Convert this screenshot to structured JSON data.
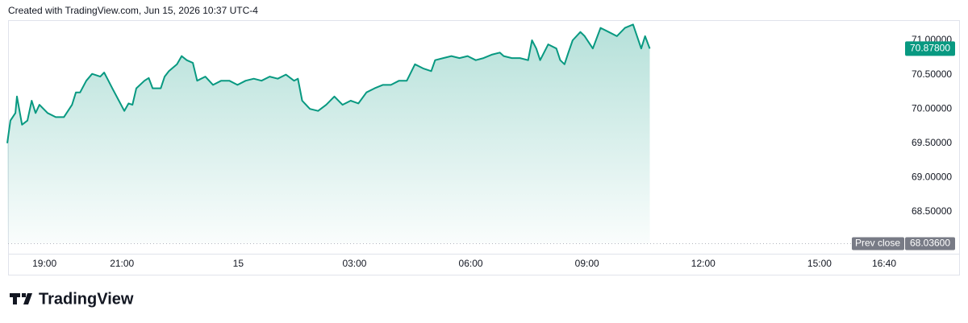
{
  "chart_data": {
    "type": "area",
    "header": "Created with TradingView.com, Jun 15, 2026 10:37 UTC-4",
    "brand": "TradingView",
    "color": "#089981",
    "x": [
      -5.96,
      -5.88,
      -5.75,
      -5.71,
      -5.58,
      -5.44,
      -5.33,
      -5.23,
      -5.13,
      -4.92,
      -4.71,
      -4.5,
      -4.29,
      -4.19,
      -4.08,
      -3.92,
      -3.77,
      -3.56,
      -3.46,
      -3.35,
      -3.25,
      -3.08,
      -2.94,
      -2.83,
      -2.73,
      -2.63,
      -2.42,
      -2.31,
      -2.21,
      -2,
      -1.9,
      -1.79,
      -1.58,
      -1.46,
      -1.33,
      -1.17,
      -1.06,
      -0.85,
      -0.65,
      -0.44,
      -0.23,
      -0.02,
      0.19,
      0.4,
      0.6,
      0.81,
      1.02,
      1.23,
      1.44,
      1.54,
      1.65,
      1.85,
      2.06,
      2.27,
      2.48,
      2.69,
      2.9,
      3.1,
      3.31,
      3.52,
      3.73,
      3.94,
      4.15,
      4.35,
      4.56,
      4.77,
      4.98,
      5.08,
      5.29,
      5.5,
      5.71,
      5.92,
      6.13,
      6.33,
      6.54,
      6.75,
      6.85,
      7.06,
      7.27,
      7.48,
      7.58,
      7.69,
      7.79,
      8,
      8.21,
      8.31,
      8.42,
      8.52,
      8.63,
      8.83,
      8.94,
      9.15,
      9.35,
      9.56,
      9.77,
      9.98,
      10.19,
      10.4,
      10.5,
      10.62
    ],
    "values": [
      69.5,
      69.83,
      69.94,
      70.18,
      69.77,
      69.83,
      70.12,
      69.94,
      70.06,
      69.94,
      69.88,
      69.88,
      70.06,
      70.24,
      70.24,
      70.41,
      70.51,
      70.47,
      70.53,
      70.41,
      70.3,
      70.12,
      69.97,
      70.08,
      70.06,
      70.3,
      70.41,
      70.45,
      70.3,
      70.3,
      70.47,
      70.55,
      70.65,
      70.77,
      70.71,
      70.67,
      70.41,
      70.47,
      70.35,
      70.41,
      70.41,
      70.35,
      70.41,
      70.44,
      70.41,
      70.47,
      70.44,
      70.5,
      70.41,
      70.44,
      70.12,
      70,
      69.97,
      70.06,
      70.18,
      70.06,
      70.12,
      70.08,
      70.24,
      70.3,
      70.35,
      70.35,
      70.41,
      70.41,
      70.65,
      70.59,
      70.55,
      70.71,
      70.74,
      70.77,
      70.74,
      70.77,
      70.71,
      70.74,
      70.79,
      70.82,
      70.77,
      70.74,
      70.74,
      70.71,
      71,
      70.88,
      70.71,
      70.94,
      70.88,
      70.71,
      70.65,
      70.82,
      71,
      71.12,
      71.06,
      70.88,
      71.18,
      71.12,
      71.06,
      71.18,
      71.23,
      70.88,
      71.06,
      70.878
    ],
    "last_value_label": "70.87800",
    "prev_close": {
      "label": "Prev close",
      "value": 68.036,
      "value_label": "68.03600"
    },
    "xlim": [
      -5.94,
      18.52
    ],
    "xticks": [
      {
        "value": -5,
        "label": "19:00"
      },
      {
        "value": -3,
        "label": "21:00"
      },
      {
        "value": 0,
        "label": "15"
      },
      {
        "value": 3,
        "label": "03:00"
      },
      {
        "value": 6,
        "label": "06:00"
      },
      {
        "value": 9,
        "label": "09:00"
      },
      {
        "value": 12,
        "label": "12:00"
      },
      {
        "value": 15,
        "label": "15:00"
      },
      {
        "value": 16.667,
        "label": "16:40"
      }
    ],
    "ylim": [
      67.89,
      71.293
    ],
    "yticks": [
      {
        "value": 68.5,
        "label": "68.50000"
      },
      {
        "value": 69,
        "label": "69.00000"
      },
      {
        "value": 69.5,
        "label": "69.50000"
      },
      {
        "value": 70,
        "label": "70.00000"
      },
      {
        "value": 70.5,
        "label": "70.50000"
      },
      {
        "value": 71,
        "label": "71.00000"
      }
    ]
  }
}
